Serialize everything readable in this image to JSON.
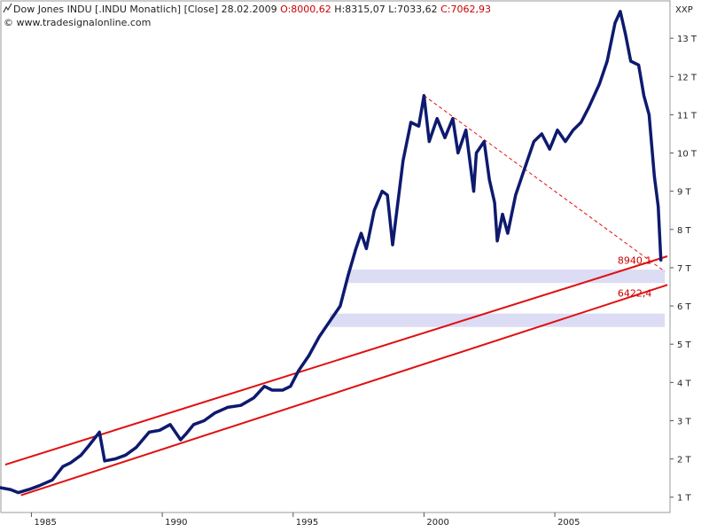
{
  "header": {
    "instrument": "Dow Jones INDU [.INDU  Monatlich]",
    "close_tag": "[Close]",
    "date": "28.02.2009",
    "ohlc": {
      "open": "O:8000,62",
      "high": "H:8315,07",
      "low": "L:7033,62",
      "close": "C:7062,93"
    },
    "copyright": "© www.tradesignalonline.com",
    "series_icon": "line-chart-icon"
  },
  "colors": {
    "price_line": "#0d1a6e",
    "channel": "#e01010",
    "trendline": "#e01010",
    "zone": "#dcdcf5",
    "annotation": "#cc0000",
    "frame": "#9a9a9a"
  },
  "chart_data": {
    "type": "line",
    "title": "Dow Jones INDU [.INDU  Monatlich]",
    "xlabel": "",
    "ylabel": "XXP",
    "xlim": [
      1983.8,
      2009.4
    ],
    "ylim": [
      0.6,
      14.0
    ],
    "x_ticks": [
      1985,
      1990,
      1995,
      2000,
      2005
    ],
    "x_tick_labels": [
      "1985",
      "1990",
      "1995",
      "2000",
      "2005"
    ],
    "y_ticks": [
      1,
      2,
      3,
      4,
      5,
      6,
      7,
      8,
      9,
      10,
      11,
      12,
      13
    ],
    "y_tick_labels": [
      "1 T",
      "2 T",
      "3 T",
      "4 T",
      "5 T",
      "6 T",
      "7 T",
      "8 T",
      "9 T",
      "10 T",
      "11 T",
      "12 T",
      "13 T"
    ],
    "grid": false,
    "series": [
      {
        "points": [
          [
            1983.8,
            1.25
          ],
          [
            1984.2,
            1.2
          ],
          [
            1984.5,
            1.12
          ],
          [
            1984.9,
            1.2
          ],
          [
            1985.3,
            1.3
          ],
          [
            1985.8,
            1.45
          ],
          [
            1986.2,
            1.8
          ],
          [
            1986.5,
            1.9
          ],
          [
            1986.9,
            2.1
          ],
          [
            1987.2,
            2.35
          ],
          [
            1987.6,
            2.7
          ],
          [
            1987.8,
            1.95
          ],
          [
            1988.2,
            2.0
          ],
          [
            1988.6,
            2.1
          ],
          [
            1989.0,
            2.3
          ],
          [
            1989.5,
            2.7
          ],
          [
            1989.9,
            2.75
          ],
          [
            1990.3,
            2.9
          ],
          [
            1990.7,
            2.5
          ],
          [
            1990.9,
            2.65
          ],
          [
            1991.2,
            2.9
          ],
          [
            1991.6,
            3.0
          ],
          [
            1992.0,
            3.2
          ],
          [
            1992.5,
            3.35
          ],
          [
            1993.0,
            3.4
          ],
          [
            1993.5,
            3.6
          ],
          [
            1993.9,
            3.9
          ],
          [
            1994.2,
            3.8
          ],
          [
            1994.6,
            3.8
          ],
          [
            1994.9,
            3.9
          ],
          [
            1995.2,
            4.3
          ],
          [
            1995.6,
            4.7
          ],
          [
            1996.0,
            5.2
          ],
          [
            1996.4,
            5.6
          ],
          [
            1996.8,
            6.0
          ],
          [
            1997.1,
            6.8
          ],
          [
            1997.4,
            7.5
          ],
          [
            1997.6,
            7.9
          ],
          [
            1997.8,
            7.5
          ],
          [
            1998.1,
            8.5
          ],
          [
            1998.4,
            9.0
          ],
          [
            1998.6,
            8.9
          ],
          [
            1998.8,
            7.6
          ],
          [
            1999.2,
            9.8
          ],
          [
            1999.5,
            10.8
          ],
          [
            1999.8,
            10.7
          ],
          [
            2000.0,
            11.5
          ],
          [
            2000.2,
            10.3
          ],
          [
            2000.5,
            10.9
          ],
          [
            2000.8,
            10.4
          ],
          [
            2001.1,
            10.9
          ],
          [
            2001.3,
            10.0
          ],
          [
            2001.6,
            10.6
          ],
          [
            2001.9,
            9.0
          ],
          [
            2002.0,
            10.0
          ],
          [
            2002.3,
            10.3
          ],
          [
            2002.5,
            9.3
          ],
          [
            2002.7,
            8.7
          ],
          [
            2002.8,
            7.7
          ],
          [
            2003.0,
            8.4
          ],
          [
            2003.2,
            7.9
          ],
          [
            2003.5,
            8.9
          ],
          [
            2003.8,
            9.5
          ],
          [
            2004.2,
            10.3
          ],
          [
            2004.5,
            10.5
          ],
          [
            2004.8,
            10.1
          ],
          [
            2005.1,
            10.6
          ],
          [
            2005.4,
            10.3
          ],
          [
            2005.7,
            10.6
          ],
          [
            2006.0,
            10.8
          ],
          [
            2006.3,
            11.2
          ],
          [
            2006.7,
            11.8
          ],
          [
            2007.0,
            12.4
          ],
          [
            2007.3,
            13.4
          ],
          [
            2007.5,
            13.7
          ],
          [
            2007.7,
            13.1
          ],
          [
            2007.9,
            12.4
          ],
          [
            2008.2,
            12.3
          ],
          [
            2008.4,
            11.5
          ],
          [
            2008.6,
            11.0
          ],
          [
            2008.8,
            9.4
          ],
          [
            2008.95,
            8.6
          ],
          [
            2009.05,
            7.2
          ]
        ]
      }
    ],
    "channel_lines": [
      {
        "from": [
          1984.0,
          1.85
        ],
        "to": [
          2009.3,
          7.3
        ]
      },
      {
        "from": [
          1984.6,
          1.05
        ],
        "to": [
          2009.3,
          6.55
        ]
      }
    ],
    "dashed_trendline": {
      "from": [
        2000.0,
        11.5
      ],
      "to": [
        2009.2,
        6.9
      ]
    },
    "support_zones": [
      {
        "from_x": 1997.1,
        "to_x": 2009.2,
        "y_low": 6.6,
        "y_high": 6.95
      },
      {
        "from_x": 1996.4,
        "to_x": 2009.2,
        "y_low": 5.45,
        "y_high": 5.8
      }
    ],
    "annotations": [
      {
        "text": "8940,1",
        "x": 2008.7,
        "y": 7.1
      },
      {
        "text": "6422,4",
        "x": 2008.7,
        "y": 6.25
      }
    ]
  }
}
